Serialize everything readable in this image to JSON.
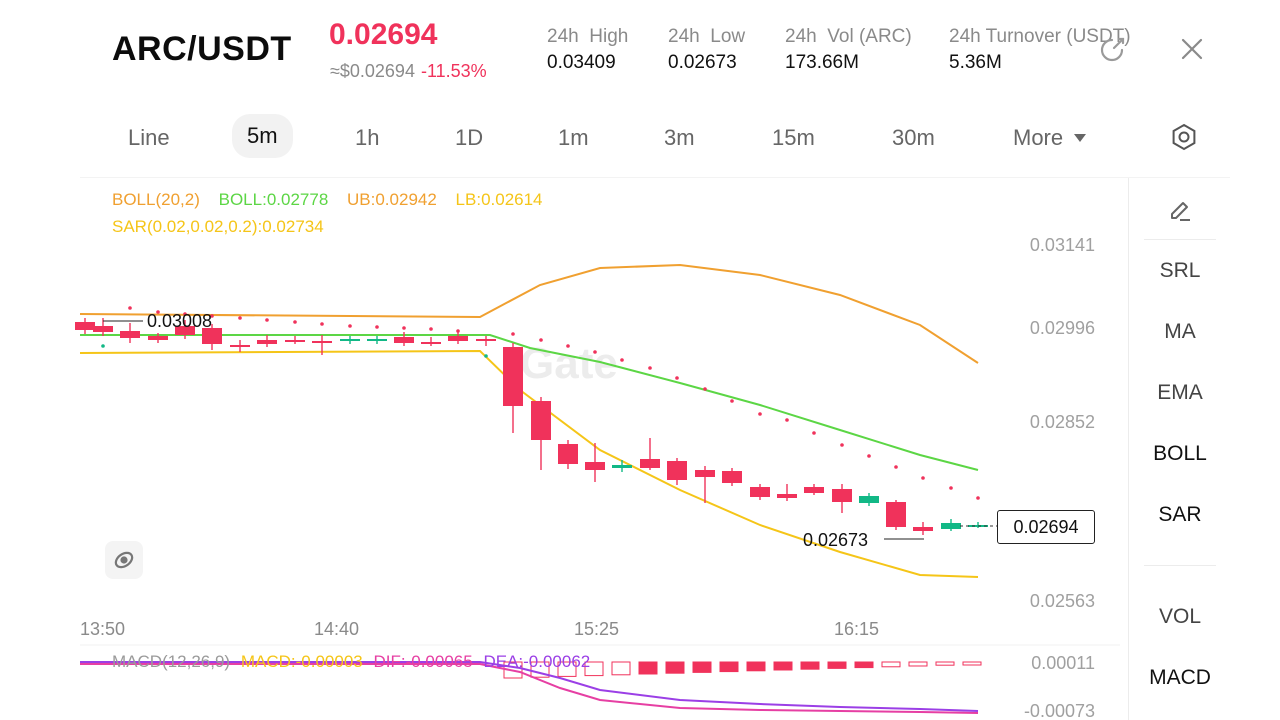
{
  "header": {
    "pair": "ARC/USDT",
    "last_price": "0.02694",
    "approx_usd": "≈$0.02694",
    "change_pct": "-11.53%",
    "stats": [
      {
        "label": "24h  High",
        "value": "0.03409"
      },
      {
        "label": "24h  Low",
        "value": "0.02673"
      },
      {
        "label": "24h  Vol (ARC)",
        "value": "173.66M"
      },
      {
        "label": "24h  Turnover (USDT)",
        "value": "5.36M"
      }
    ]
  },
  "timeframes": [
    "Line",
    "5m",
    "1h",
    "1D",
    "1m",
    "3m",
    "15m",
    "30m"
  ],
  "active_timeframe": "5m",
  "more_label": "More",
  "indicators": {
    "boll_params": "BOLL(20,2)",
    "boll": "BOLL:0.02778",
    "ub": "UB:0.02942",
    "lb": "LB:0.02614",
    "sar": "SAR(0.02,0.02,0.2):0.02734",
    "macd_params": "MACD(12,26,9)",
    "macd": "MACD:-0.00003",
    "dif": "DIF:-0.00065",
    "dea": "DEA:-0.00062"
  },
  "side_menu": [
    "SRL",
    "MA",
    "EMA",
    "BOLL",
    "SAR",
    "VOL",
    "MACD"
  ],
  "side_menu_active": [
    "BOLL",
    "SAR",
    "MACD"
  ],
  "chart": {
    "y_ticks": [
      "0.03141",
      "0.02996",
      "0.02852",
      "0.02563"
    ],
    "macd_ticks": [
      "0.00011",
      "-0.00073"
    ],
    "x_ticks": [
      "13:50",
      "14:40",
      "15:25",
      "16:15"
    ],
    "high_marker": "0.03008",
    "low_marker": "0.02673",
    "current_price": "0.02694"
  },
  "colors": {
    "up": "#12b886",
    "down": "#f0325b",
    "ub": "#f0a030",
    "lb": "#f5c518",
    "mid": "#5cd645",
    "sar": "#f0325b",
    "dif": "#e63fa3",
    "dea": "#9b3fe6"
  }
}
